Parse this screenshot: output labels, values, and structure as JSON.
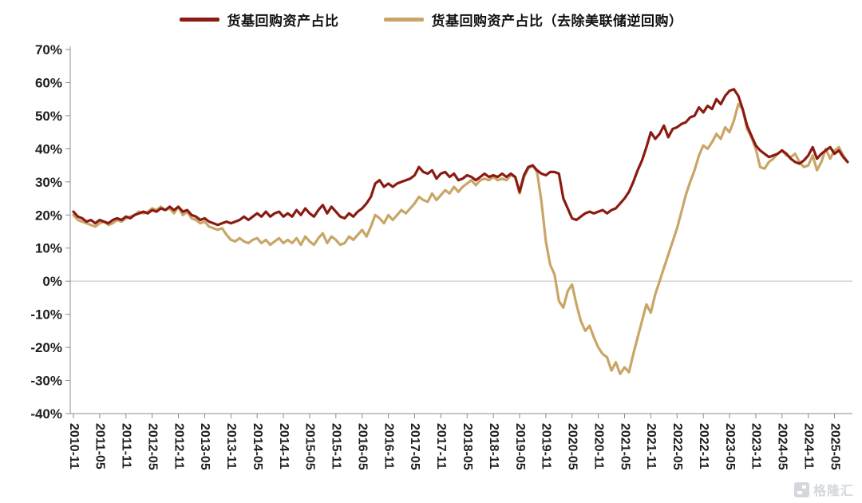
{
  "watermark": {
    "text": "格隆汇"
  },
  "chart_data": {
    "type": "line",
    "title": "",
    "xlabel": "",
    "ylabel": "",
    "ylim": [
      -40,
      70
    ],
    "y_ticks": [
      70,
      60,
      50,
      40,
      30,
      20,
      10,
      0,
      -10,
      -20,
      -30,
      -40
    ],
    "y_tick_suffix": "%",
    "grid": "zero-line-only",
    "legend_position": "top-center",
    "x_start": "2010-11",
    "x_end": "2025-08",
    "x_step_months": 1,
    "x_tick_every_points": 6,
    "x_tick_labels": [
      "2010-11",
      "2011-05",
      "2011-11",
      "2012-05",
      "2012-11",
      "2013-05",
      "2013-11",
      "2014-05",
      "2014-11",
      "2015-05",
      "2015-11",
      "2016-05",
      "2016-11",
      "2017-05",
      "2017-11",
      "2018-05",
      "2018-11",
      "2019-05",
      "2019-11",
      "2020-05",
      "2020-11",
      "2021-05",
      "2021-11",
      "2022-05",
      "2022-11",
      "2023-05",
      "2023-11",
      "2024-05",
      "2024-11",
      "2025-05"
    ],
    "series": [
      {
        "name": "货基回购资产占比",
        "color": "#8a1a12",
        "values": [
          21,
          19.5,
          19,
          18,
          18.5,
          17.5,
          18.5,
          18,
          17.5,
          18.5,
          19,
          18.5,
          19.5,
          19,
          20,
          20.5,
          21,
          20.5,
          21.5,
          21,
          22,
          21.5,
          22.5,
          21.5,
          22.5,
          21,
          21.5,
          20,
          19.5,
          18.5,
          19,
          18,
          17.5,
          17,
          17.5,
          18,
          17.5,
          18,
          18.5,
          19.5,
          18.5,
          19.5,
          20.5,
          19.5,
          21,
          19.5,
          20.5,
          21,
          19.5,
          20.5,
          19.5,
          21.5,
          20,
          22,
          20.5,
          19.5,
          21.5,
          23,
          20.5,
          22.5,
          21,
          19.5,
          19,
          20.5,
          19.5,
          21,
          22,
          23.5,
          25.5,
          29.5,
          30.5,
          28.5,
          29.5,
          28.5,
          29.5,
          30,
          30.5,
          31,
          32,
          34.5,
          33,
          32.5,
          33.5,
          31,
          32.5,
          33,
          31.5,
          32.5,
          30.5,
          31,
          32,
          31.5,
          30.5,
          31.5,
          32.5,
          31.5,
          32,
          31.5,
          32.5,
          31.5,
          32.5,
          31.5,
          27,
          32,
          34.5,
          35,
          33.5,
          32.5,
          32,
          33,
          33,
          32.5,
          25,
          22,
          19,
          18.5,
          19.5,
          20.5,
          21,
          20.5,
          21,
          21.5,
          20.5,
          21.5,
          22,
          23.5,
          25,
          27,
          30,
          33.5,
          36.5,
          40.5,
          45,
          43,
          44.5,
          47,
          43.5,
          46,
          46.5,
          47.5,
          48,
          49.5,
          50,
          52.5,
          51,
          53,
          52,
          55,
          53.5,
          56,
          57.5,
          58,
          56,
          52,
          47,
          44,
          41,
          39.5,
          38.5,
          37.5,
          38,
          38.5,
          39.5,
          38.5,
          37,
          36,
          35.5,
          36.5,
          38,
          40.5,
          37,
          38.5,
          39.5,
          40.5,
          38.5,
          39.5,
          37.5,
          36
        ]
      },
      {
        "name": "货基回购资产占比（去除美联储逆回购）",
        "color": "#c9a567",
        "values": [
          20,
          18.5,
          18,
          17.5,
          17,
          16.5,
          17.5,
          18,
          17,
          17.5,
          18.5,
          18,
          19,
          19.5,
          20,
          21,
          20.5,
          21,
          22,
          21.5,
          22.5,
          21.5,
          22,
          20.5,
          22.5,
          20,
          21,
          19,
          18.5,
          17.5,
          18,
          16.5,
          16,
          15.5,
          16,
          14,
          12.5,
          12,
          13,
          12,
          11.5,
          12.5,
          13,
          11.5,
          12.5,
          11,
          12,
          13,
          11.5,
          12.5,
          11.5,
          13,
          11,
          13.5,
          12,
          11,
          13,
          14.5,
          11.5,
          13.5,
          12.5,
          11,
          11.5,
          13.5,
          12.5,
          14,
          15.5,
          13.5,
          16.5,
          20,
          19,
          17.5,
          20,
          18.5,
          20,
          21.5,
          20.5,
          22,
          23.5,
          25.5,
          24.5,
          24,
          26.5,
          24.5,
          26,
          27.5,
          26.5,
          28.5,
          27,
          28.5,
          29.5,
          30.5,
          29,
          30.5,
          31,
          30.5,
          31.5,
          30.5,
          31,
          30.5,
          32,
          31.5,
          26.5,
          31.5,
          34,
          35,
          33,
          24,
          12,
          5,
          2,
          -6,
          -8,
          -3,
          -1,
          -7,
          -12,
          -15,
          -13.5,
          -17,
          -20,
          -22,
          -23,
          -27,
          -24.5,
          -28,
          -26,
          -27.5,
          -22,
          -17,
          -12,
          -7,
          -9.5,
          -4,
          0,
          4,
          8,
          12,
          16,
          21,
          26,
          30,
          33.5,
          38,
          41,
          40,
          42,
          44.5,
          43,
          46.5,
          45,
          48.5,
          53.5,
          52,
          46,
          43.5,
          40,
          34.5,
          34,
          36,
          37,
          38.5,
          39.5,
          38,
          37.5,
          38.5,
          36,
          34.5,
          35,
          38,
          33.5,
          36,
          40,
          37,
          39.5,
          40.5,
          38,
          36
        ]
      }
    ]
  }
}
